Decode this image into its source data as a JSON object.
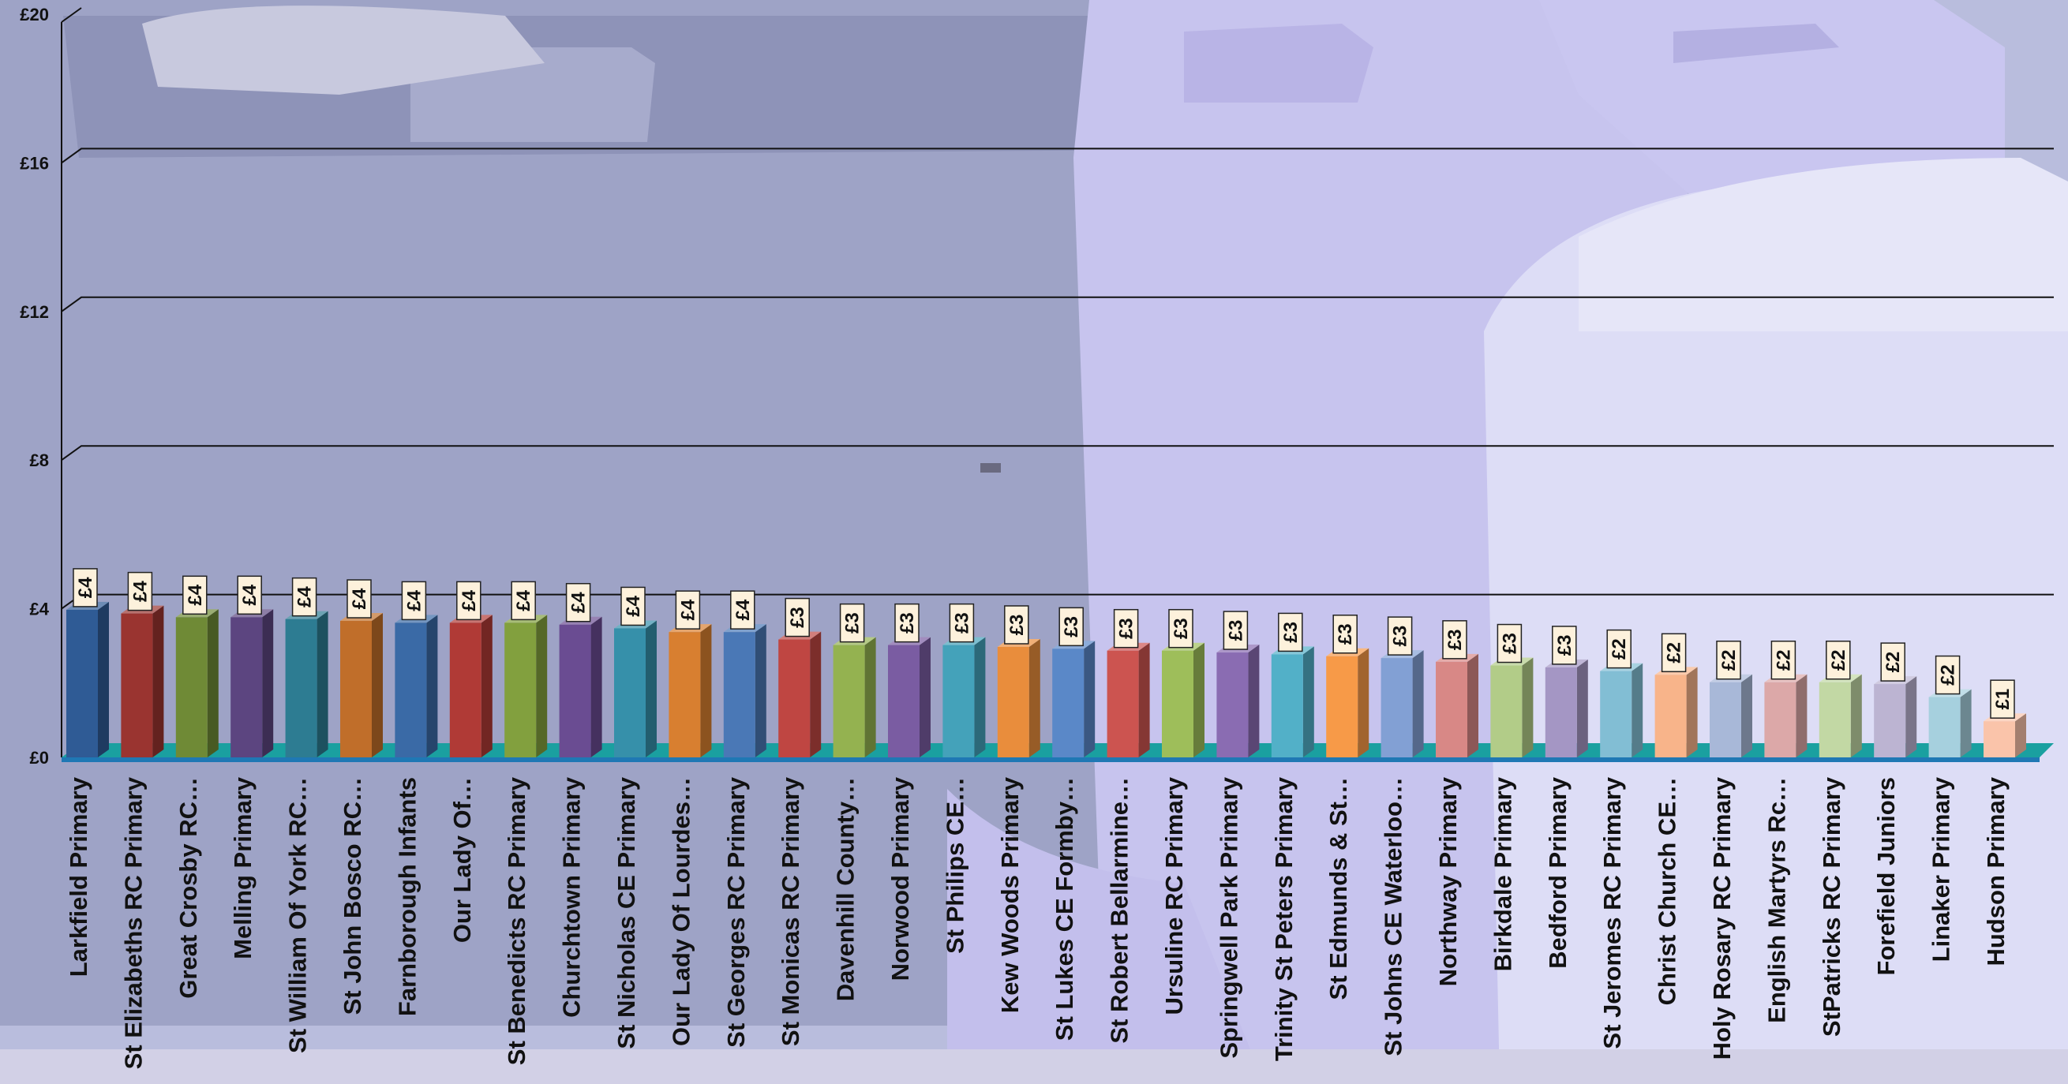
{
  "chart_data": {
    "type": "bar",
    "y_ticks": [
      "£0",
      "£4",
      "£8",
      "£12",
      "£16",
      "£20"
    ],
    "ylim": [
      0,
      20
    ],
    "grid": true,
    "legend": "none",
    "categories": [
      "Larkfield Primary",
      "St Elizabeths RC Primary",
      "Great Crosby RC…",
      "Melling Primary",
      "St William Of York RC…",
      "St John Bosco RC…",
      "Farnborough Infants",
      "Our Lady Of…",
      "St Benedicts RC Primary",
      "Churchtown Primary",
      "St Nicholas CE Primary",
      "Our Lady Of Lourdes…",
      "St Georges RC Primary",
      "St Monicas RC Primary",
      "Davenhill County…",
      "Norwood Primary",
      "St Philips CE…",
      "Kew Woods Primary",
      "St Lukes CE Formby…",
      "St Robert Bellarmine…",
      "Ursuline RC Primary",
      "Springwell Park Primary",
      "Trinity St Peters Primary",
      "St Edmunds & St…",
      "St Johns CE Waterloo…",
      "Northway Primary",
      "Birkdale Primary",
      "Bedford Primary",
      "St Jeromes RC Primary",
      "Christ Church CE…",
      "Holy Rosary RC Primary",
      "English Martyrs Rc…",
      "StPatricks RC Primary",
      "Forefield Juniors",
      "Linaker Primary",
      "Hudson Primary"
    ],
    "values": [
      4.1,
      4.0,
      3.9,
      3.9,
      3.85,
      3.8,
      3.75,
      3.75,
      3.75,
      3.7,
      3.6,
      3.5,
      3.5,
      3.3,
      3.15,
      3.15,
      3.15,
      3.1,
      3.05,
      3.0,
      3.0,
      2.95,
      2.9,
      2.85,
      2.8,
      2.7,
      2.6,
      2.55,
      2.45,
      2.35,
      2.15,
      2.15,
      2.15,
      2.1,
      1.75,
      1.1
    ],
    "data_labels": [
      "£4",
      "£4",
      "£4",
      "£4",
      "£4",
      "£4",
      "£4",
      "£4",
      "£4",
      "£4",
      "£4",
      "£4",
      "£4",
      "£3",
      "£3",
      "£3",
      "£3",
      "£3",
      "£3",
      "£3",
      "£3",
      "£3",
      "£3",
      "£3",
      "£3",
      "£3",
      "£3",
      "£3",
      "£2",
      "£2",
      "£2",
      "£2",
      "£2",
      "£2",
      "£2",
      "£1"
    ],
    "colors": [
      "#2f5b95",
      "#9a3430",
      "#6f8a36",
      "#5c4580",
      "#2d7c92",
      "#c06e2a",
      "#3a6aa6",
      "#b03a36",
      "#82a03e",
      "#6a4c92",
      "#3690aa",
      "#d87f30",
      "#4a78b6",
      "#bf4642",
      "#94b250",
      "#7a5ca2",
      "#44a2ba",
      "#e98d3c",
      "#5a88c8",
      "#cc5450",
      "#9ebe5a",
      "#8a6cb2",
      "#52b0c8",
      "#f79a48",
      "#82a0d4",
      "#d88886",
      "#b2cc88",
      "#a496c4",
      "#82bed4",
      "#f8b48a",
      "#a8b8d8",
      "#dca8a8",
      "#c2d8a4",
      "#bcb4d2",
      "#a6d0de",
      "#fac4aa"
    ],
    "floor_color": "#1f78b4"
  }
}
